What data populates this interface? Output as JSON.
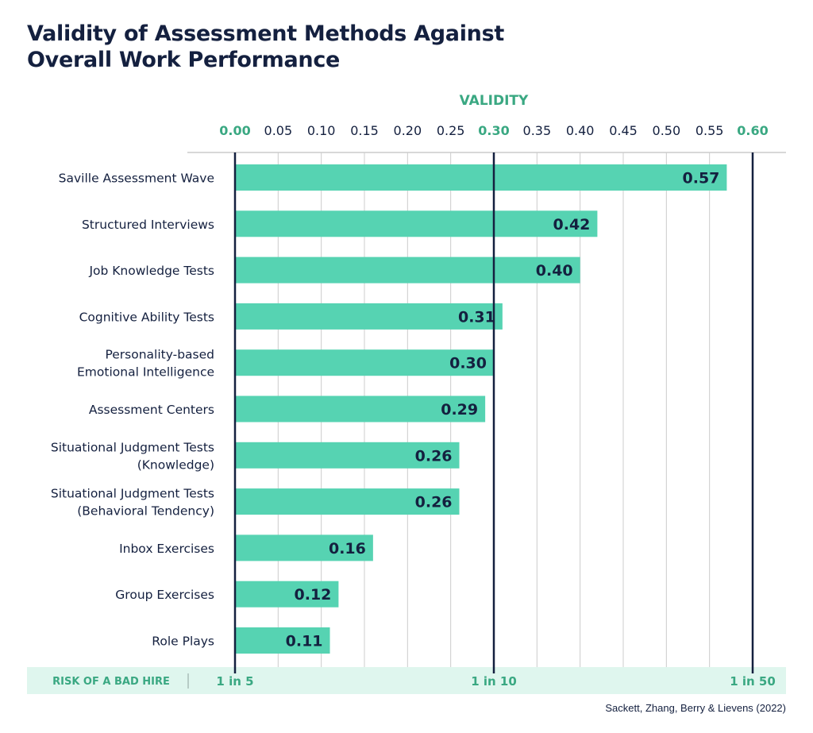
{
  "title_lines": [
    "Validity of Assessment Methods Against",
    "Overall Work Performance"
  ],
  "source": "Sackett, Zhang, Berry & Lievens (2022)",
  "colors": {
    "bar": "#56d3b2",
    "navy": "#14203f",
    "accent": "#3aa882",
    "band": "#dff6ee",
    "grid": "#cccccc"
  },
  "chart_data": {
    "type": "bar",
    "orientation": "horizontal",
    "xlabel": "VALIDITY",
    "xlim": [
      0,
      0.6
    ],
    "ticks": [
      "0.00",
      "0.05",
      "0.10",
      "0.15",
      "0.20",
      "0.25",
      "0.30",
      "0.35",
      "0.40",
      "0.45",
      "0.50",
      "0.55",
      "0.60"
    ],
    "highlight_ticks": [
      "0.00",
      "0.30",
      "0.60"
    ],
    "grid": true,
    "categories": [
      [
        "Saville Assessment Wave"
      ],
      [
        "Structured Interviews"
      ],
      [
        "Job Knowledge Tests"
      ],
      [
        "Cognitive Ability Tests"
      ],
      [
        "Personality-based",
        "Emotional Intelligence"
      ],
      [
        "Assessment Centers"
      ],
      [
        "Situational Judgment Tests",
        "(Knowledge)"
      ],
      [
        "Situational Judgment Tests",
        "(Behavioral Tendency)"
      ],
      [
        "Inbox Exercises"
      ],
      [
        "Group Exercises"
      ],
      [
        "Role Plays"
      ]
    ],
    "values": [
      0.57,
      0.42,
      0.4,
      0.31,
      0.3,
      0.29,
      0.26,
      0.26,
      0.16,
      0.12,
      0.11
    ],
    "value_labels": [
      "0.57",
      "0.42",
      "0.40",
      "0.31",
      "0.30",
      "0.29",
      "0.26",
      "0.26",
      "0.16",
      "0.12",
      "0.11"
    ],
    "reference_lines": [
      0,
      0.3,
      0.6
    ],
    "risk": {
      "label": "RISK OF A BAD HIRE",
      "markers": [
        {
          "at": 0,
          "text": "1 in 5"
        },
        {
          "at": 0.3,
          "text": "1 in 10"
        },
        {
          "at": 0.6,
          "text": "1 in 50"
        }
      ]
    }
  }
}
